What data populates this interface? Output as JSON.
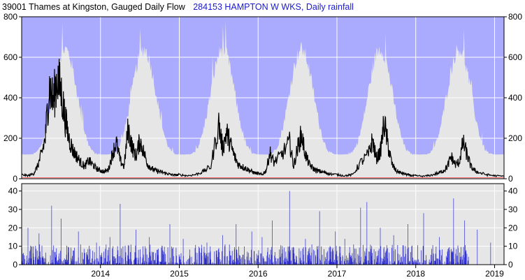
{
  "header": {
    "flow_title": "39001 Thames at Kingston,  Gauged Daily Flow",
    "rain_title": "284153  HAMPTON W WKS, Daily rainfall"
  },
  "colors": {
    "flow_line": "#000000",
    "envelope_max": "#aaaaff",
    "envelope_range": "#e6e6e6",
    "min_line": "#ff6666",
    "rain_bars": "#1a1acc",
    "rain_bg": "#e6e6e6",
    "grid": "#ffffff",
    "rain_title": "#1a1acc"
  },
  "chart_data": [
    {
      "type": "area",
      "panel": "flow",
      "title": "39001 Thames at Kingston,  Gauged Daily Flow",
      "x_range": [
        2013.0,
        2019.12
      ],
      "ylim": [
        0,
        800
      ],
      "y_ticks": [
        0,
        200,
        400,
        600,
        800
      ],
      "grid": true,
      "envelope_years_phase": [
        2013.5,
        2014.5,
        2015.5,
        2016.5,
        2017.5,
        2018.5
      ],
      "flow_series": {
        "x": [
          2013.0,
          2013.08,
          2013.15,
          2013.2,
          2013.25,
          2013.3,
          2013.35,
          2013.4,
          2013.45,
          2013.5,
          2013.55,
          2013.6,
          2013.65,
          2013.7,
          2013.75,
          2013.8,
          2013.85,
          2013.9,
          2013.95,
          2014.0,
          2014.05,
          2014.1,
          2014.15,
          2014.2,
          2014.25,
          2014.3,
          2014.35,
          2014.4,
          2014.45,
          2014.5,
          2014.55,
          2014.6,
          2014.65,
          2014.7,
          2014.75,
          2014.8,
          2014.85,
          2014.9,
          2014.95,
          2015.0,
          2015.1,
          2015.2,
          2015.3,
          2015.4,
          2015.5,
          2015.55,
          2015.6,
          2015.65,
          2015.7,
          2015.75,
          2015.8,
          2015.85,
          2015.9,
          2015.95,
          2016.0,
          2016.05,
          2016.1,
          2016.15,
          2016.2,
          2016.3,
          2016.4,
          2016.45,
          2016.5,
          2016.55,
          2016.6,
          2016.65,
          2016.7,
          2016.75,
          2016.8,
          2016.85,
          2016.9,
          2017.0,
          2017.1,
          2017.2,
          2017.3,
          2017.4,
          2017.45,
          2017.5,
          2017.55,
          2017.6,
          2017.65,
          2017.7,
          2017.75,
          2017.8,
          2017.85,
          2017.9,
          2017.95,
          2018.0,
          2018.1,
          2018.2,
          2018.3,
          2018.35,
          2018.4,
          2018.45,
          2018.5,
          2018.55,
          2018.6,
          2018.65,
          2018.7,
          2018.75,
          2018.8,
          2018.9,
          2019.0,
          2019.12
        ],
        "y": [
          20,
          15,
          25,
          60,
          120,
          200,
          460,
          380,
          500,
          430,
          300,
          200,
          140,
          110,
          80,
          60,
          90,
          70,
          50,
          40,
          35,
          45,
          120,
          180,
          90,
          60,
          250,
          160,
          110,
          190,
          130,
          70,
          50,
          40,
          35,
          30,
          25,
          20,
          18,
          20,
          15,
          20,
          35,
          60,
          270,
          150,
          230,
          170,
          110,
          70,
          60,
          50,
          40,
          30,
          25,
          20,
          40,
          130,
          80,
          120,
          180,
          60,
          150,
          220,
          120,
          70,
          50,
          40,
          35,
          30,
          25,
          20,
          15,
          20,
          80,
          120,
          190,
          100,
          130,
          280,
          160,
          70,
          40,
          30,
          25,
          20,
          15,
          15,
          12,
          18,
          30,
          40,
          60,
          110,
          70,
          80,
          180,
          120,
          60,
          40,
          30,
          20,
          15,
          12
        ]
      }
    },
    {
      "type": "bar",
      "panel": "rainfall",
      "title": "284153  HAMPTON W WKS, Daily rainfall",
      "x_range": [
        2013.0,
        2019.12
      ],
      "ylim": [
        0,
        44
      ],
      "y_ticks": [
        0,
        10,
        20,
        30,
        40
      ],
      "grid": true,
      "x_ticks": [
        "2014",
        "2015",
        "2016",
        "2017",
        "2018",
        "2019"
      ],
      "x_tick_values": [
        2014,
        2015,
        2016,
        2017,
        2018,
        2019
      ],
      "peaks": {
        "x": [
          2013.08,
          2013.22,
          2013.38,
          2013.5,
          2013.72,
          2013.95,
          2014.12,
          2014.25,
          2014.45,
          2014.62,
          2014.88,
          2015.05,
          2015.35,
          2015.55,
          2015.72,
          2015.92,
          2016.05,
          2016.18,
          2016.4,
          2016.6,
          2016.78,
          2016.98,
          2017.1,
          2017.3,
          2017.38,
          2017.55,
          2017.72,
          2017.9,
          2018.1,
          2018.3,
          2018.48,
          2018.62,
          2018.78,
          2018.95
        ],
        "y": [
          20,
          17,
          32,
          25,
          18,
          12,
          15,
          33,
          19,
          15,
          22,
          14,
          12,
          16,
          22,
          18,
          15,
          24,
          40,
          14,
          29,
          18,
          14,
          31,
          34,
          20,
          16,
          22,
          28,
          15,
          36,
          24,
          19,
          12
        ]
      }
    }
  ]
}
